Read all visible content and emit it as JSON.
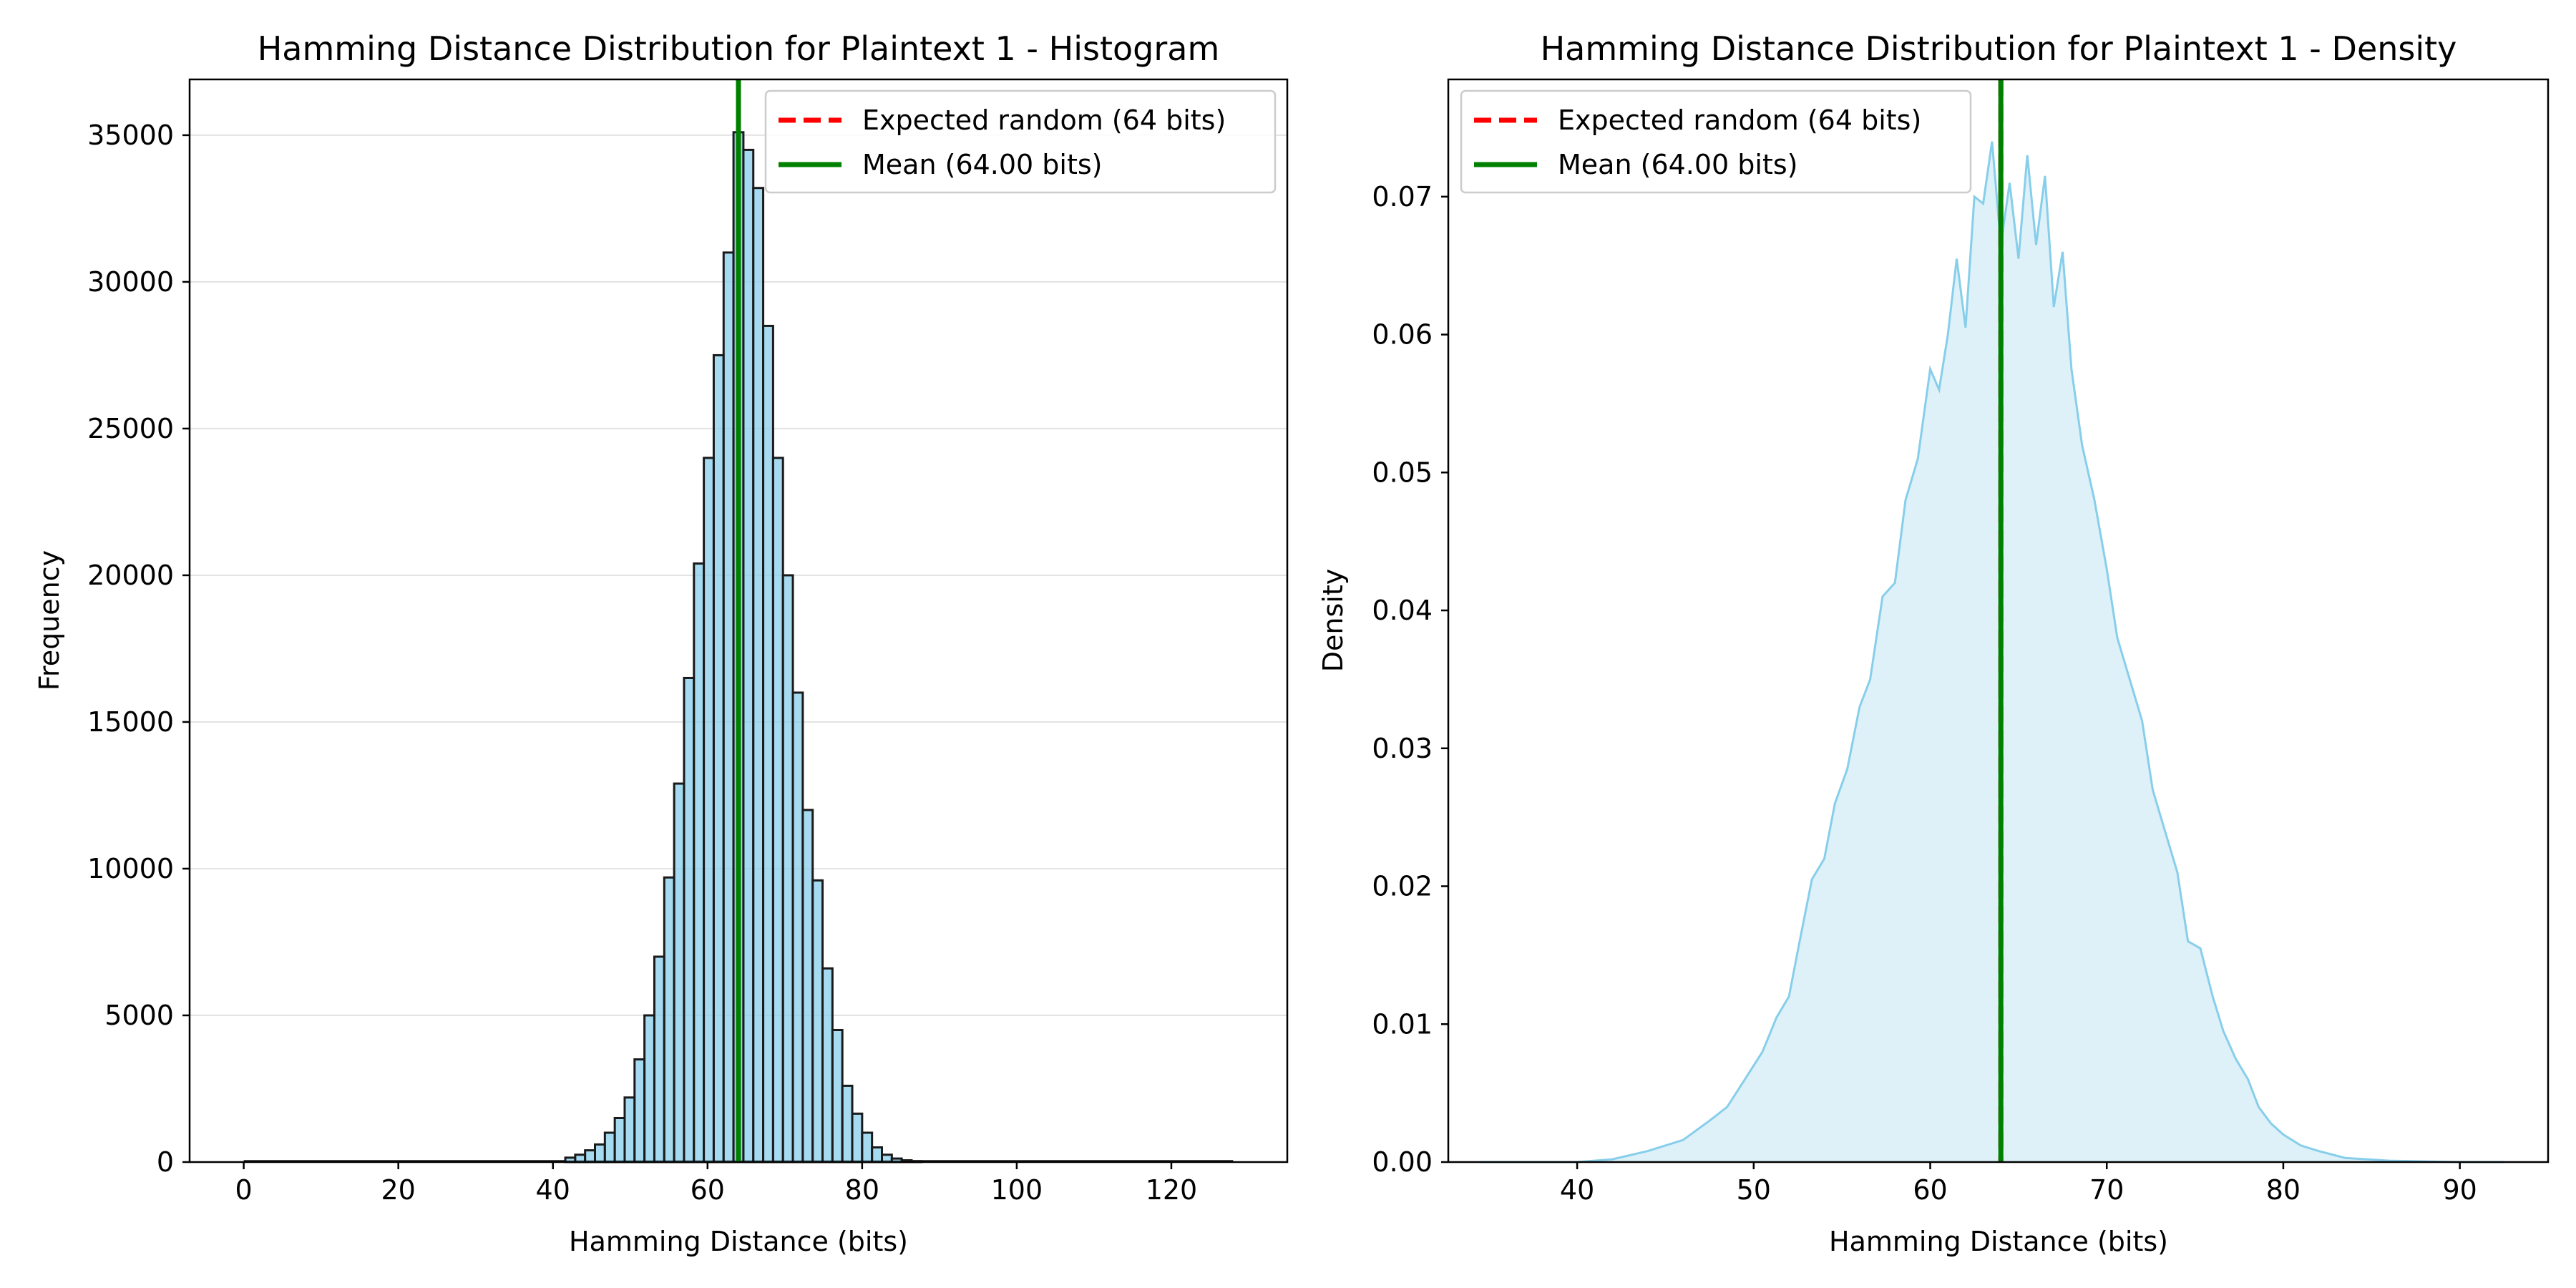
{
  "chart_data": [
    {
      "type": "bar",
      "title": "Hamming Distance Distribution for Plaintext 1 - Histogram",
      "xlabel": "Hamming Distance (bits)",
      "ylabel": "Frequency",
      "xlim": [
        -7,
        135
      ],
      "ylim": [
        0,
        36900
      ],
      "xticks": [
        0,
        20,
        40,
        60,
        80,
        100,
        120
      ],
      "yticks": [
        0,
        5000,
        10000,
        15000,
        20000,
        25000,
        30000,
        35000
      ],
      "grid": "y",
      "legend": {
        "placement": "upper right",
        "entries": [
          {
            "label": "Expected random (64 bits)",
            "color": "#ff0000",
            "style": "dashed"
          },
          {
            "label": "Mean (64.00 bits)",
            "color": "#008000",
            "style": "solid"
          }
        ]
      },
      "vlines": [
        {
          "x": 64,
          "color": "#ff0000",
          "style": "dashed"
        },
        {
          "x": 64,
          "color": "#008000",
          "style": "solid"
        }
      ],
      "bar_color": "#87ceeb",
      "bar_edge_color": "#1a1a1a",
      "bin_width": 1.28,
      "bars": [
        {
          "x": 42.24,
          "value": 150
        },
        {
          "x": 43.52,
          "value": 250
        },
        {
          "x": 44.8,
          "value": 400
        },
        {
          "x": 46.08,
          "value": 600
        },
        {
          "x": 47.36,
          "value": 1000
        },
        {
          "x": 48.64,
          "value": 1500
        },
        {
          "x": 49.92,
          "value": 2200
        },
        {
          "x": 51.2,
          "value": 3500
        },
        {
          "x": 52.48,
          "value": 5000
        },
        {
          "x": 53.76,
          "value": 7000
        },
        {
          "x": 55.04,
          "value": 9700
        },
        {
          "x": 56.32,
          "value": 12900
        },
        {
          "x": 57.6,
          "value": 16500
        },
        {
          "x": 58.88,
          "value": 20400
        },
        {
          "x": 60.16,
          "value": 24000
        },
        {
          "x": 61.44,
          "value": 27500
        },
        {
          "x": 62.72,
          "value": 31000
        },
        {
          "x": 64.0,
          "value": 35100
        },
        {
          "x": 65.28,
          "value": 34500
        },
        {
          "x": 66.56,
          "value": 33200
        },
        {
          "x": 67.84,
          "value": 28500
        },
        {
          "x": 69.12,
          "value": 24000
        },
        {
          "x": 70.4,
          "value": 20000
        },
        {
          "x": 71.68,
          "value": 16000
        },
        {
          "x": 72.96,
          "value": 12000
        },
        {
          "x": 74.24,
          "value": 9600
        },
        {
          "x": 75.52,
          "value": 6600
        },
        {
          "x": 76.8,
          "value": 4500
        },
        {
          "x": 78.08,
          "value": 2600
        },
        {
          "x": 79.36,
          "value": 1650
        },
        {
          "x": 80.64,
          "value": 1000
        },
        {
          "x": 81.92,
          "value": 500
        },
        {
          "x": 83.2,
          "value": 250
        },
        {
          "x": 84.48,
          "value": 120
        },
        {
          "x": 85.76,
          "value": 60
        },
        {
          "x": 87.04,
          "value": 30
        }
      ]
    },
    {
      "type": "area",
      "title": "Hamming Distance Distribution for Plaintext 1 - Density",
      "xlabel": "Hamming Distance (bits)",
      "ylabel": "Density",
      "xlim": [
        32.7,
        95.0
      ],
      "ylim": [
        0,
        0.0785
      ],
      "xticks": [
        40,
        50,
        60,
        70,
        80,
        90
      ],
      "yticks": [
        0.0,
        0.01,
        0.02,
        0.03,
        0.04,
        0.05,
        0.06,
        0.07
      ],
      "ytick_labels": [
        "0.00",
        "0.01",
        "0.02",
        "0.03",
        "0.04",
        "0.05",
        "0.06",
        "0.07"
      ],
      "grid": "none",
      "legend": {
        "placement": "upper left",
        "entries": [
          {
            "label": "Expected random (64 bits)",
            "color": "#ff0000",
            "style": "dashed"
          },
          {
            "label": "Mean (64.00 bits)",
            "color": "#008000",
            "style": "solid"
          }
        ]
      },
      "vlines": [
        {
          "x": 64,
          "color": "#ff0000",
          "style": "dashed"
        },
        {
          "x": 64,
          "color": "#008000",
          "style": "solid"
        }
      ],
      "line_color": "#87ceeb",
      "fill_color": "#87ceeb",
      "points": [
        [
          34.5,
          0.0
        ],
        [
          40.0,
          0.0
        ],
        [
          42.0,
          0.0002
        ],
        [
          44.0,
          0.0008
        ],
        [
          46.0,
          0.0016
        ],
        [
          47.5,
          0.003
        ],
        [
          48.5,
          0.004
        ],
        [
          49.5,
          0.006
        ],
        [
          50.5,
          0.008
        ],
        [
          51.3,
          0.0105
        ],
        [
          52.0,
          0.012
        ],
        [
          52.6,
          0.016
        ],
        [
          53.3,
          0.0205
        ],
        [
          54.0,
          0.022
        ],
        [
          54.6,
          0.026
        ],
        [
          55.3,
          0.0285
        ],
        [
          56.0,
          0.033
        ],
        [
          56.6,
          0.035
        ],
        [
          57.3,
          0.041
        ],
        [
          58.0,
          0.042
        ],
        [
          58.6,
          0.048
        ],
        [
          59.3,
          0.051
        ],
        [
          60.0,
          0.0575
        ],
        [
          60.5,
          0.056
        ],
        [
          61.0,
          0.06
        ],
        [
          61.5,
          0.0655
        ],
        [
          62.0,
          0.0605
        ],
        [
          62.5,
          0.07
        ],
        [
          63.0,
          0.0695
        ],
        [
          63.5,
          0.074
        ],
        [
          64.0,
          0.0665
        ],
        [
          64.5,
          0.071
        ],
        [
          65.0,
          0.0655
        ],
        [
          65.5,
          0.073
        ],
        [
          66.0,
          0.0665
        ],
        [
          66.5,
          0.0715
        ],
        [
          67.0,
          0.062
        ],
        [
          67.5,
          0.066
        ],
        [
          68.0,
          0.0575
        ],
        [
          68.6,
          0.052
        ],
        [
          69.3,
          0.048
        ],
        [
          70.0,
          0.043
        ],
        [
          70.6,
          0.038
        ],
        [
          71.3,
          0.035
        ],
        [
          72.0,
          0.032
        ],
        [
          72.6,
          0.027
        ],
        [
          73.3,
          0.024
        ],
        [
          74.0,
          0.021
        ],
        [
          74.6,
          0.016
        ],
        [
          75.3,
          0.0155
        ],
        [
          76.0,
          0.012
        ],
        [
          76.6,
          0.0095
        ],
        [
          77.3,
          0.0075
        ],
        [
          78.0,
          0.006
        ],
        [
          78.6,
          0.004
        ],
        [
          79.3,
          0.0028
        ],
        [
          80.0,
          0.002
        ],
        [
          81.0,
          0.0012
        ],
        [
          82.0,
          0.0008
        ],
        [
          83.5,
          0.0003
        ],
        [
          86.0,
          0.0001
        ],
        [
          90.0,
          0.0
        ],
        [
          92.5,
          0.0
        ]
      ]
    }
  ]
}
